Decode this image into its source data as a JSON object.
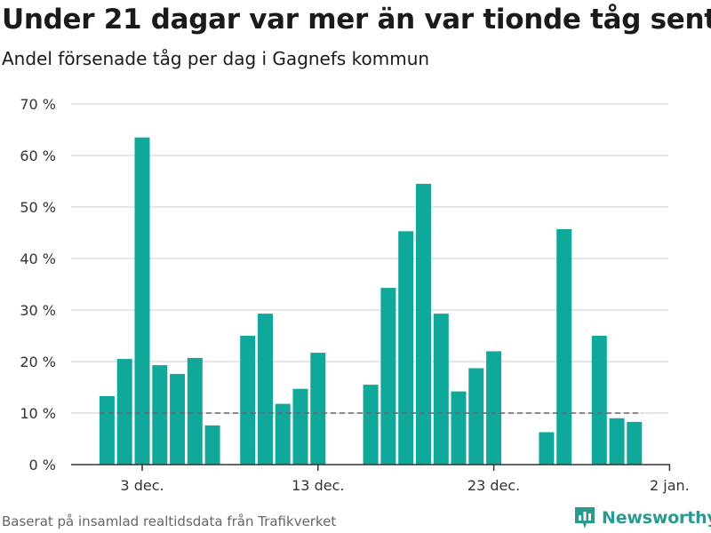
{
  "title": "Under 21 dagar var mer än var tionde tåg sent",
  "subtitle": "Andel försenade tåg per dag i Gagnefs kommun",
  "source": "Baserat på insamlad realtidsdata från Trafikverket",
  "brand": "Newsworthy",
  "colors": {
    "bar": "#0fa89b",
    "reference_line": "#666677",
    "grid": "#dddddd",
    "brand": "#2a9a8e"
  },
  "chart_data": {
    "type": "bar",
    "y_unit": "%",
    "ylim": [
      0,
      70
    ],
    "y_ticks": [
      {
        "value": 0,
        "label": "0 %"
      },
      {
        "value": 10,
        "label": "10 %"
      },
      {
        "value": 20,
        "label": "20 %"
      },
      {
        "value": 30,
        "label": "30 %"
      },
      {
        "value": 40,
        "label": "40 %"
      },
      {
        "value": 50,
        "label": "50 %"
      },
      {
        "value": 60,
        "label": "60 %"
      },
      {
        "value": 70,
        "label": "70 %"
      }
    ],
    "x_ticks": [
      {
        "date": "2018-12-03",
        "label": "3 dec."
      },
      {
        "date": "2018-12-13",
        "label": "13 dec."
      },
      {
        "date": "2018-12-23",
        "label": "23 dec."
      },
      {
        "date": "2019-01-02",
        "label": "2 jan."
      }
    ],
    "x_range": [
      "2018-11-29",
      "2019-01-01"
    ],
    "grid": true,
    "reference_line": {
      "value": 10,
      "from": "2018-12-01",
      "to": "2018-12-31",
      "style": "dashed"
    },
    "series": [
      {
        "values": [
          {
            "date": "2018-12-01",
            "value": 13.3
          },
          {
            "date": "2018-12-02",
            "value": 20.5
          },
          {
            "date": "2018-12-03",
            "value": 63.5
          },
          {
            "date": "2018-12-04",
            "value": 19.3
          },
          {
            "date": "2018-12-05",
            "value": 17.6
          },
          {
            "date": "2018-12-06",
            "value": 20.7
          },
          {
            "date": "2018-12-07",
            "value": 7.6
          },
          {
            "date": "2018-12-09",
            "value": 25.0
          },
          {
            "date": "2018-12-10",
            "value": 29.3
          },
          {
            "date": "2018-12-11",
            "value": 11.8
          },
          {
            "date": "2018-12-12",
            "value": 14.7
          },
          {
            "date": "2018-12-13",
            "value": 21.7
          },
          {
            "date": "2018-12-16",
            "value": 15.5
          },
          {
            "date": "2018-12-17",
            "value": 34.3
          },
          {
            "date": "2018-12-18",
            "value": 45.3
          },
          {
            "date": "2018-12-19",
            "value": 54.5
          },
          {
            "date": "2018-12-20",
            "value": 29.3
          },
          {
            "date": "2018-12-21",
            "value": 14.2
          },
          {
            "date": "2018-12-22",
            "value": 18.7
          },
          {
            "date": "2018-12-23",
            "value": 22.0
          },
          {
            "date": "2018-12-26",
            "value": 6.3
          },
          {
            "date": "2018-12-27",
            "value": 45.7
          },
          {
            "date": "2018-12-29",
            "value": 25.0
          },
          {
            "date": "2018-12-30",
            "value": 9.0
          },
          {
            "date": "2018-12-31",
            "value": 8.3
          }
        ]
      }
    ]
  }
}
